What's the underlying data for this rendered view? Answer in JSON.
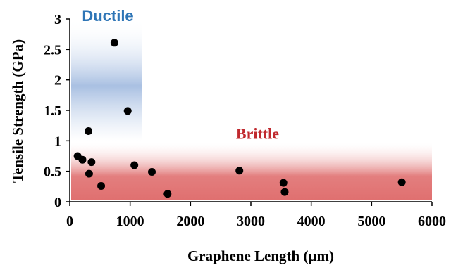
{
  "chart_data": {
    "type": "scatter",
    "title": "",
    "xlabel": "Graphene Length (µm)",
    "ylabel": "Tensile Strength (GPa)",
    "xlim": [
      0,
      6000
    ],
    "ylim": [
      0,
      3
    ],
    "xticks": [
      0,
      1000,
      2000,
      3000,
      4000,
      5000,
      6000
    ],
    "yticks": [
      0,
      0.5,
      1,
      1.5,
      2,
      2.5,
      3
    ],
    "xtick_labels": [
      "0",
      "1000",
      "2000",
      "3000",
      "4000",
      "5000",
      "6000"
    ],
    "ytick_labels": [
      "0",
      "0.5",
      "1",
      "1.5",
      "2",
      "2.5",
      "3"
    ],
    "grid": false,
    "legend": "none",
    "points": [
      {
        "x": 130,
        "y": 0.75
      },
      {
        "x": 210,
        "y": 0.69
      },
      {
        "x": 310,
        "y": 1.16
      },
      {
        "x": 320,
        "y": 0.46
      },
      {
        "x": 360,
        "y": 0.65
      },
      {
        "x": 520,
        "y": 0.26
      },
      {
        "x": 740,
        "y": 2.61
      },
      {
        "x": 960,
        "y": 1.49
      },
      {
        "x": 1070,
        "y": 0.6
      },
      {
        "x": 1360,
        "y": 0.49
      },
      {
        "x": 1620,
        "y": 0.13
      },
      {
        "x": 2810,
        "y": 0.51
      },
      {
        "x": 3540,
        "y": 0.31
      },
      {
        "x": 3560,
        "y": 0.16
      },
      {
        "x": 5500,
        "y": 0.32
      }
    ],
    "regions": [
      {
        "label": "Ductile",
        "x_range": [
          0,
          1200
        ],
        "y_range": [
          1,
          3
        ],
        "color": "#2e75b6",
        "fill": "#a9c0e2"
      },
      {
        "label": "Brittle",
        "x_range": [
          0,
          6000
        ],
        "y_range": [
          0,
          1
        ],
        "color": "#c0292e",
        "fill": "#e07070"
      }
    ],
    "marker_color": "#000000"
  }
}
